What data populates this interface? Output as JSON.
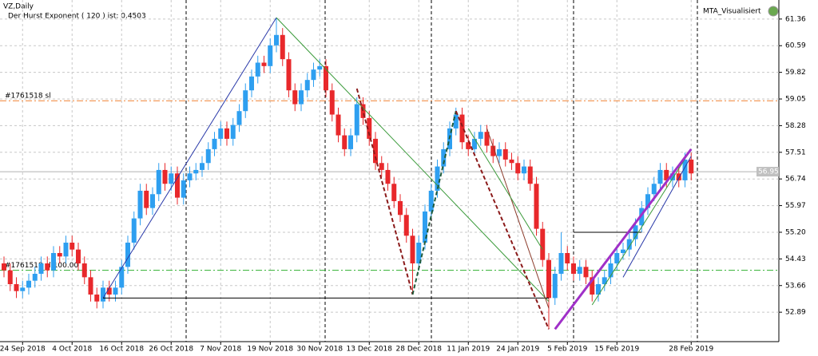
{
  "chart_data": {
    "type": "candlestick",
    "title": "VZ,Daily",
    "subtitle": "Der Hurst Exponent ( 120 ) ist: 0.4503",
    "indicator": "MTA_Visualisiert",
    "categories": [
      null,
      null,
      null,
      "24 Sep 2018",
      null,
      null,
      null,
      null,
      null,
      null,
      null,
      "4 Oct 2018",
      null,
      null,
      null,
      null,
      null,
      null,
      null,
      "16 Oct 2018",
      null,
      null,
      null,
      null,
      null,
      null,
      null,
      "26 Oct 2018",
      null,
      null,
      null,
      null,
      null,
      null,
      null,
      "7 Nov 2018",
      null,
      null,
      null,
      null,
      null,
      null,
      null,
      "19 Nov 2018",
      null,
      null,
      null,
      null,
      null,
      null,
      null,
      "30 Nov 2018",
      null,
      null,
      null,
      null,
      null,
      null,
      null,
      "13 Dec 2018",
      null,
      null,
      null,
      null,
      null,
      null,
      null,
      "28 Dec 2018",
      null,
      null,
      null,
      null,
      null,
      null,
      null,
      "11 Jan 2019",
      null,
      null,
      null,
      null,
      null,
      null,
      null,
      "24 Jan 2019",
      null,
      null,
      null,
      null,
      null,
      null,
      null,
      "5 Feb 2019",
      null,
      null,
      null,
      null,
      null,
      null,
      null,
      "15 Feb 2019",
      null,
      null,
      null,
      null,
      null,
      null,
      null,
      null,
      null,
      null,
      null,
      "28 Feb 2019"
    ],
    "open": [
      54.3,
      54.1,
      53.7,
      53.5,
      53.6,
      53.8,
      54.0,
      54.3,
      54.1,
      54.6,
      54.5,
      54.9,
      54.7,
      54.3,
      53.9,
      53.4,
      53.2,
      53.6,
      53.4,
      53.6,
      54.2,
      54.9,
      55.6,
      56.4,
      55.9,
      56.3,
      57.0,
      56.6,
      56.9,
      56.2,
      56.7,
      56.9,
      57.0,
      57.2,
      57.6,
      57.9,
      58.2,
      57.9,
      58.3,
      58.7,
      59.3,
      59.7,
      60.1,
      60.0,
      60.6,
      60.9,
      60.2,
      59.3,
      58.9,
      59.3,
      59.6,
      59.9,
      60.0,
      59.3,
      58.6,
      58.0,
      57.6,
      58.0,
      58.9,
      58.5,
      57.9,
      57.2,
      57.0,
      56.6,
      56.1,
      55.7,
      55.1,
      54.3,
      54.9,
      55.8,
      56.4,
      57.1,
      57.6,
      58.2,
      58.6,
      57.8,
      57.6,
      57.9,
      58.1,
      57.7,
      57.4,
      57.6,
      57.3,
      57.2,
      56.9,
      57.1,
      56.6,
      55.3,
      54.4,
      53.3,
      54.0,
      54.6,
      54.3,
      54.0,
      54.2,
      53.9,
      53.4,
      53.7,
      53.9,
      54.3,
      54.6,
      54.7,
      55.0,
      55.4,
      55.9,
      56.3,
      56.6,
      57.0,
      56.7,
      56.9,
      56.7,
      57.3
    ],
    "high": [
      54.5,
      54.3,
      53.9,
      53.8,
      54.0,
      54.2,
      54.5,
      54.5,
      54.8,
      54.8,
      55.1,
      55.1,
      54.9,
      54.5,
      54.1,
      53.6,
      53.8,
      53.8,
      53.8,
      54.4,
      55.1,
      55.8,
      56.6,
      56.6,
      56.5,
      57.2,
      57.2,
      57.1,
      57.1,
      56.9,
      57.1,
      57.2,
      57.4,
      57.8,
      58.1,
      58.4,
      58.4,
      58.5,
      58.9,
      59.5,
      59.9,
      60.3,
      60.3,
      60.8,
      61.4,
      61.1,
      60.4,
      59.5,
      59.5,
      59.8,
      60.1,
      60.2,
      60.2,
      59.5,
      58.8,
      58.2,
      58.2,
      59.1,
      59.1,
      58.7,
      58.1,
      57.4,
      57.2,
      56.8,
      56.3,
      55.9,
      55.3,
      55.1,
      56.0,
      56.6,
      57.3,
      57.8,
      58.4,
      58.8,
      58.8,
      58.0,
      58.1,
      58.3,
      58.3,
      57.9,
      57.8,
      57.8,
      57.5,
      57.4,
      57.3,
      57.3,
      56.8,
      55.5,
      54.6,
      54.2,
      55.2,
      54.8,
      54.5,
      54.4,
      54.4,
      54.1,
      53.9,
      54.1,
      54.5,
      54.8,
      54.9,
      55.2,
      55.6,
      56.1,
      56.5,
      56.8,
      57.2,
      57.2,
      57.1,
      57.1,
      57.5,
      57.5
    ],
    "low": [
      53.9,
      53.5,
      53.3,
      53.3,
      53.4,
      53.6,
      53.8,
      53.9,
      53.9,
      54.3,
      54.3,
      54.5,
      54.1,
      53.7,
      53.2,
      53.0,
      53.0,
      53.2,
      53.2,
      53.4,
      54.0,
      54.7,
      55.4,
      55.7,
      55.7,
      56.1,
      56.4,
      56.4,
      56.0,
      56.0,
      56.5,
      56.7,
      56.8,
      57.0,
      57.4,
      57.7,
      57.7,
      57.7,
      58.1,
      58.5,
      59.1,
      59.5,
      59.8,
      59.8,
      60.4,
      60.0,
      59.1,
      58.7,
      58.7,
      59.1,
      59.4,
      59.7,
      59.1,
      58.4,
      57.8,
      57.4,
      57.4,
      57.8,
      58.3,
      57.7,
      57.0,
      56.8,
      56.4,
      55.9,
      55.5,
      54.9,
      53.4,
      54.1,
      54.7,
      55.6,
      56.2,
      56.9,
      57.4,
      58.0,
      57.6,
      57.4,
      57.4,
      57.7,
      57.5,
      57.2,
      57.2,
      57.1,
      57.0,
      56.7,
      56.7,
      56.4,
      55.1,
      54.2,
      52.4,
      53.1,
      53.8,
      54.1,
      53.8,
      53.8,
      53.7,
      53.2,
      53.2,
      53.5,
      53.7,
      54.1,
      54.4,
      54.5,
      54.8,
      55.2,
      55.7,
      56.1,
      56.4,
      56.5,
      56.5,
      56.5,
      56.5,
      56.7
    ],
    "close": [
      54.1,
      53.7,
      53.5,
      53.6,
      53.8,
      54.0,
      54.3,
      54.1,
      54.6,
      54.5,
      54.9,
      54.7,
      54.3,
      53.9,
      53.4,
      53.2,
      53.6,
      53.4,
      53.6,
      54.2,
      54.9,
      55.6,
      56.4,
      55.9,
      56.3,
      57.0,
      56.6,
      56.9,
      56.2,
      56.7,
      56.9,
      57.0,
      57.2,
      57.6,
      57.9,
      58.2,
      57.9,
      58.3,
      58.7,
      59.3,
      59.7,
      60.1,
      60.0,
      60.6,
      60.9,
      60.2,
      59.3,
      58.9,
      59.3,
      59.6,
      59.9,
      60.0,
      59.3,
      58.6,
      58.0,
      57.6,
      58.0,
      58.9,
      58.5,
      57.9,
      57.2,
      57.0,
      56.6,
      56.1,
      55.7,
      55.1,
      54.3,
      54.9,
      55.8,
      56.4,
      57.1,
      57.6,
      58.2,
      58.6,
      57.8,
      57.6,
      57.9,
      58.1,
      57.7,
      57.4,
      57.6,
      57.3,
      57.2,
      56.9,
      57.1,
      56.6,
      55.3,
      54.4,
      53.3,
      54.0,
      54.6,
      54.3,
      54.0,
      54.2,
      53.9,
      53.4,
      53.7,
      53.9,
      54.3,
      54.6,
      54.7,
      55.0,
      55.4,
      55.9,
      56.3,
      56.6,
      57.0,
      56.7,
      56.9,
      56.7,
      57.3,
      56.9
    ],
    "up_color": "#2e9ff0",
    "down_color": "#e8282b",
    "ylim": [
      52.04,
      61.91
    ],
    "yticks": [
      52.89,
      53.66,
      54.43,
      {
        "value": 55.2,
        "label": "55.20"
      },
      55.97,
      56.74,
      57.51,
      58.28,
      59.05,
      59.82,
      60.59,
      61.36
    ],
    "grid": true,
    "last_price": 56.95,
    "levels": [
      {
        "label": "#1761518 sl",
        "value": 59.0,
        "color": "#f08030"
      },
      {
        "label": "#1761518 sl:100.00",
        "value": 54.1,
        "color": "#30b030"
      }
    ],
    "trend_lines": [
      {
        "color": "#2838a8",
        "style": "solid",
        "points": [
          [
            16,
            53.3
          ],
          [
            44,
            61.4
          ]
        ]
      },
      {
        "color": "#3a9a3a",
        "style": "solid",
        "points": [
          [
            44,
            61.4
          ],
          [
            88,
            53.2
          ]
        ]
      },
      {
        "color": "#000000",
        "style": "solid",
        "points": [
          [
            16,
            53.3
          ],
          [
            88,
            53.3
          ]
        ]
      },
      {
        "color": "#8b1a1a",
        "style": "dashed",
        "points": [
          [
            57,
            59.35
          ],
          [
            66,
            53.4
          ]
        ]
      },
      {
        "color": "#1f5a3a",
        "style": "dashed",
        "points": [
          [
            66,
            53.4
          ],
          [
            73,
            58.7
          ]
        ]
      },
      {
        "color": "#8b1a1a",
        "style": "dashed",
        "points": [
          [
            73,
            58.7
          ],
          [
            88,
            52.4
          ]
        ]
      },
      {
        "color": "#8b3a2a",
        "style": "solid",
        "points": [
          [
            78,
            58.2
          ],
          [
            88,
            53.0
          ]
        ]
      },
      {
        "color": "#3a9a3a",
        "style": "solid",
        "points": [
          [
            75,
            58.2
          ],
          [
            87,
            54.7
          ]
        ]
      },
      {
        "color": "#000000",
        "style": "solid",
        "points": [
          [
            92,
            55.2
          ],
          [
            103,
            55.2
          ]
        ]
      },
      {
        "color": "#3a9a3a",
        "style": "solid",
        "points": [
          [
            95,
            53.1
          ],
          [
            111,
            57.6
          ]
        ]
      },
      {
        "color": "#2838a8",
        "style": "solid",
        "points": [
          [
            100,
            53.9
          ],
          [
            111,
            57.4
          ]
        ]
      },
      {
        "color": "#a030c8",
        "style": "thick",
        "points": [
          [
            89,
            52.4
          ],
          [
            111,
            57.6
          ]
        ]
      }
    ]
  }
}
